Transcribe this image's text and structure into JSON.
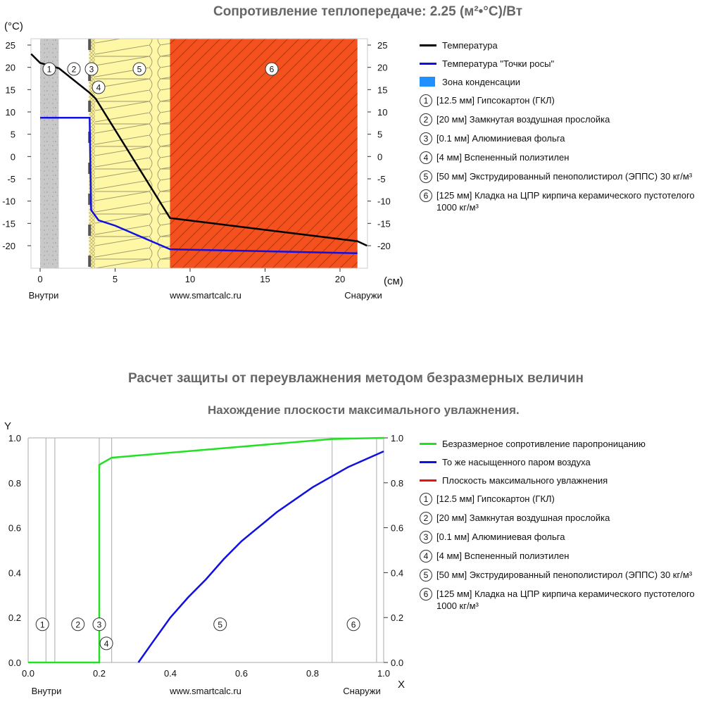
{
  "chart_data": [
    {
      "type": "line",
      "title": "Сопротивление теплопередаче: 2.25 (м²•°С)/Вт",
      "ylabel": "(°C)",
      "xlabel": "(см)",
      "xlim": [
        -0.6,
        21.8
      ],
      "ylim": [
        -24,
        26
      ],
      "xticks": [
        0,
        5,
        10,
        15,
        20
      ],
      "yticks": [
        25,
        20,
        15,
        10,
        5,
        0,
        -5,
        -10,
        -15,
        -20
      ],
      "bottom_labels": {
        "left": "Внутри",
        "center": "www.smartcalc.ru",
        "right": "Снаружи"
      },
      "layers": [
        {
          "n": "1",
          "from": 0,
          "to": 1.25
        },
        {
          "n": "2",
          "from": 1.25,
          "to": 3.25
        },
        {
          "n": "3",
          "from": 3.25,
          "to": 3.26
        },
        {
          "n": "4",
          "from": 3.26,
          "to": 3.66
        },
        {
          "n": "5",
          "from": 3.66,
          "to": 8.66
        },
        {
          "n": "6",
          "from": 8.66,
          "to": 21.16
        }
      ],
      "series": [
        {
          "name": "Температура",
          "color": "#000000",
          "x": [
            -0.6,
            0,
            1.25,
            3.3,
            3.7,
            8.66,
            21.16,
            21.8
          ],
          "y": [
            23,
            21,
            19.8,
            14.3,
            13,
            -13.8,
            -19,
            -20
          ]
        },
        {
          "name": "Температура \"Точки росы\"",
          "color": "#1010e0",
          "x": [
            0,
            3.3,
            3.4,
            3.9,
            5,
            8.66,
            21.16
          ],
          "y": [
            8.7,
            8.7,
            -12,
            -14.3,
            -15.5,
            -20.8,
            -21.7
          ]
        }
      ],
      "legend_extra": "Зона конденсации"
    },
    {
      "type": "line",
      "title": "Расчет защиты от переувлажнения методом безразмерных величин",
      "subtitle": "Нахождение плоскости максимального увлажнения.",
      "xlabel": "X",
      "ylabel": "Y",
      "xlim": [
        0,
        1
      ],
      "ylim": [
        0,
        1
      ],
      "xticks": [
        "0.0",
        "0.2",
        "0.4",
        "0.6",
        "0.8",
        "1.0"
      ],
      "yticks": [
        "0.0",
        "0.2",
        "0.4",
        "0.6",
        "0.8",
        "1.0"
      ],
      "bottom_labels": {
        "left": "Внутри",
        "center": "www.smartcalc.ru",
        "right": "Снаружи"
      },
      "boundaries": [
        0.05,
        0.075,
        0.2,
        0.235,
        0.855,
        0.98
      ],
      "layer_markers": [
        {
          "n": "1",
          "x": 0.04,
          "y": 0.17
        },
        {
          "n": "2",
          "x": 0.14,
          "y": 0.17
        },
        {
          "n": "3",
          "x": 0.2,
          "y": 0.17
        },
        {
          "n": "4",
          "x": 0.22,
          "y": 0.085
        },
        {
          "n": "5",
          "x": 0.54,
          "y": 0.17
        },
        {
          "n": "6",
          "x": 0.915,
          "y": 0.17
        }
      ],
      "series": [
        {
          "name": "Безразмерное сопротивление паропроницанию",
          "color": "#22e022",
          "x": [
            0,
            0.2,
            0.2,
            0.235,
            0.855,
            1
          ],
          "y": [
            0,
            0,
            0.88,
            0.912,
            0.995,
            1
          ]
        },
        {
          "name": "То же насыщенного паром воздуха",
          "color": "#1010e0",
          "x": [
            0.31,
            0.35,
            0.4,
            0.45,
            0.5,
            0.55,
            0.6,
            0.7,
            0.8,
            0.9,
            1
          ],
          "y": [
            0,
            0.09,
            0.2,
            0.29,
            0.37,
            0.46,
            0.54,
            0.67,
            0.78,
            0.87,
            0.94
          ]
        },
        {
          "name": "Плоскость максимального увлажнения",
          "color": "#ee1111",
          "x": [],
          "y": []
        }
      ]
    }
  ],
  "layer_legend": [
    {
      "n": "1",
      "text": "[12.5 мм] Гипсокартон (ГКЛ)"
    },
    {
      "n": "2",
      "text": "[20 мм] Замкнутая воздушная прослойка"
    },
    {
      "n": "3",
      "text": "[0.1 мм] Алюминиевая фольга"
    },
    {
      "n": "4",
      "text": "[4 мм] Вспененный полиэтилен"
    },
    {
      "n": "5",
      "text": "[50 мм] Экструдированный пенополистирол (ЭППС) 30 кг/м³"
    },
    {
      "n": "6",
      "text": "[125 мм] Кладка на ЦПР кирпича керамического пустотелого 1000 кг/м³"
    }
  ]
}
